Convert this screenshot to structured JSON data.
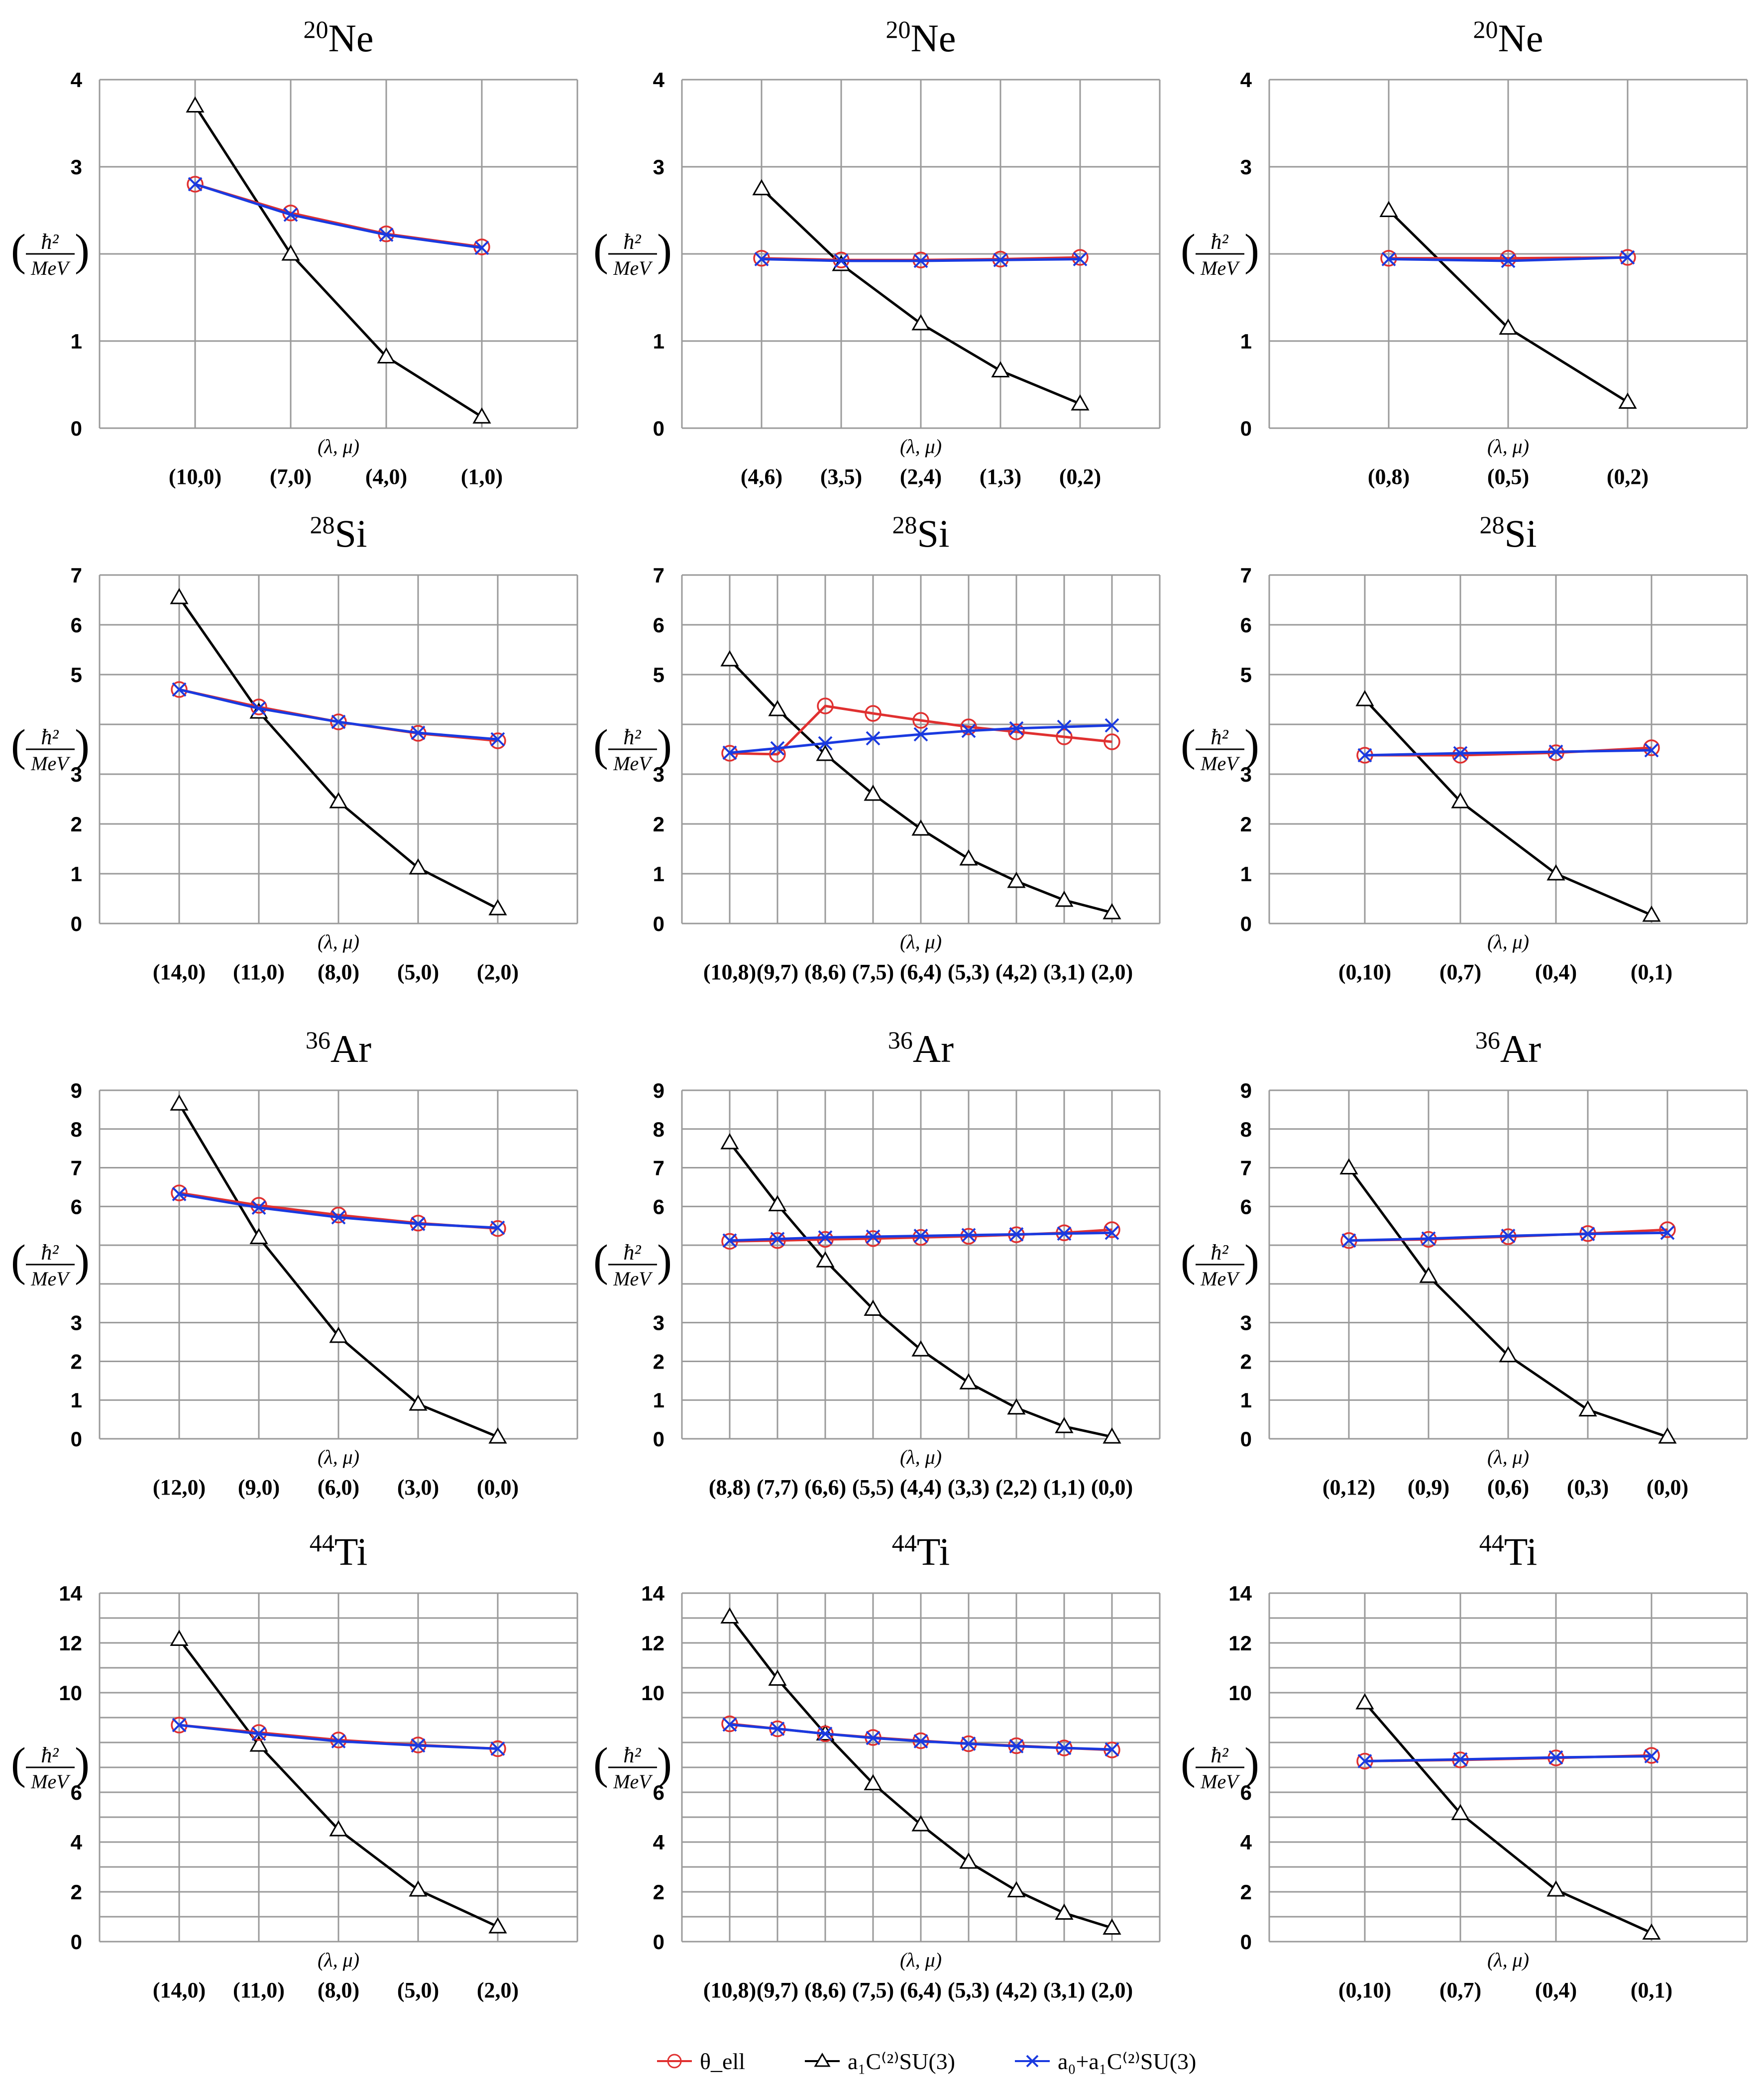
{
  "ylabel_unit": {
    "num": "ħ²",
    "den": "MeV"
  },
  "xlabel": "(λ, μ)",
  "legend": [
    {
      "key": "theta",
      "label": "θ_ell",
      "color": "#e03030",
      "marker": "circle"
    },
    {
      "key": "a1c",
      "label": "a₁C⁽²⁾SU(3)",
      "color": "#000000",
      "marker": "triangle"
    },
    {
      "key": "sum",
      "label": "a₀+a₁C⁽²⁾SU(3)",
      "color": "#1a3ae0",
      "marker": "cross"
    }
  ],
  "chart_data": [
    {
      "type": "line",
      "nucleus": "Ne",
      "mass": "20",
      "title": "20Ne",
      "ylim": [
        0,
        4
      ],
      "yticks": [
        0,
        1,
        2,
        3,
        4
      ],
      "ytick_labels": [
        "0",
        "1",
        "",
        "3",
        "4"
      ],
      "categories": [
        "(10,0)",
        "(7,0)",
        "(4,0)",
        "(1,0)"
      ],
      "series": [
        {
          "key": "a1c",
          "values": [
            3.7,
            2.0,
            0.82,
            0.13
          ]
        },
        {
          "key": "theta",
          "values": [
            2.8,
            2.47,
            2.23,
            2.08
          ]
        },
        {
          "key": "sum",
          "values": [
            2.8,
            2.45,
            2.22,
            2.07
          ]
        }
      ]
    },
    {
      "type": "line",
      "nucleus": "Ne",
      "mass": "20",
      "title": "20Ne",
      "ylim": [
        0,
        4
      ],
      "yticks": [
        0,
        1,
        2,
        3,
        4
      ],
      "ytick_labels": [
        "0",
        "1",
        "",
        "3",
        "4"
      ],
      "categories": [
        "(4,6)",
        "(3,5)",
        "(2,4)",
        "(1,3)",
        "(0,2)"
      ],
      "series": [
        {
          "key": "a1c",
          "values": [
            2.75,
            1.88,
            1.2,
            0.66,
            0.28
          ]
        },
        {
          "key": "theta",
          "values": [
            1.95,
            1.93,
            1.93,
            1.94,
            1.96
          ]
        },
        {
          "key": "sum",
          "values": [
            1.94,
            1.92,
            1.92,
            1.93,
            1.94
          ]
        }
      ]
    },
    {
      "type": "line",
      "nucleus": "Ne",
      "mass": "20",
      "title": "20Ne",
      "ylim": [
        0,
        4
      ],
      "yticks": [
        0,
        1,
        2,
        3,
        4
      ],
      "ytick_labels": [
        "0",
        "1",
        "",
        "3",
        "4"
      ],
      "categories": [
        "(0,8)",
        "(0,5)",
        "(0,2)"
      ],
      "series": [
        {
          "key": "a1c",
          "values": [
            2.5,
            1.15,
            0.3
          ]
        },
        {
          "key": "theta",
          "values": [
            1.95,
            1.95,
            1.96
          ]
        },
        {
          "key": "sum",
          "values": [
            1.94,
            1.92,
            1.96
          ]
        }
      ]
    },
    {
      "type": "line",
      "nucleus": "Si",
      "mass": "28",
      "title": "28Si",
      "ylim": [
        0,
        7
      ],
      "yticks": [
        0,
        1,
        2,
        3,
        4,
        5,
        6,
        7
      ],
      "ytick_labels": [
        "0",
        "1",
        "2",
        "3",
        "",
        "5",
        "6",
        "7"
      ],
      "categories": [
        "(14,0)",
        "(11,0)",
        "(8,0)",
        "(5,0)",
        "(2,0)"
      ],
      "series": [
        {
          "key": "a1c",
          "values": [
            6.55,
            4.25,
            2.45,
            1.12,
            0.3
          ]
        },
        {
          "key": "theta",
          "values": [
            4.7,
            4.35,
            4.05,
            3.82,
            3.67
          ]
        },
        {
          "key": "sum",
          "values": [
            4.7,
            4.32,
            4.05,
            3.83,
            3.7
          ]
        }
      ]
    },
    {
      "type": "line",
      "nucleus": "Si",
      "mass": "28",
      "title": "28Si",
      "ylim": [
        0,
        7
      ],
      "yticks": [
        0,
        1,
        2,
        3,
        4,
        5,
        6,
        7
      ],
      "ytick_labels": [
        "0",
        "1",
        "2",
        "3",
        "",
        "5",
        "6",
        "7"
      ],
      "categories": [
        "(10,8)",
        "(9,7)",
        "(8,6)",
        "(7,5)",
        "(6,4)",
        "(5,3)",
        "(4,2)",
        "(3,1)",
        "(2,0)"
      ],
      "series": [
        {
          "key": "a1c",
          "values": [
            5.3,
            4.3,
            3.4,
            2.6,
            1.9,
            1.3,
            0.85,
            0.47,
            0.22
          ]
        },
        {
          "key": "theta",
          "values": [
            3.42,
            3.4,
            4.37,
            4.22,
            4.08,
            3.95,
            3.85,
            3.75,
            3.65
          ]
        },
        {
          "key": "sum",
          "values": [
            3.43,
            3.52,
            3.62,
            3.72,
            3.8,
            3.87,
            3.92,
            3.95,
            3.98
          ]
        }
      ]
    },
    {
      "type": "line",
      "nucleus": "Si",
      "mass": "28",
      "title": "28Si",
      "ylim": [
        0,
        7
      ],
      "yticks": [
        0,
        1,
        2,
        3,
        4,
        5,
        6,
        7
      ],
      "ytick_labels": [
        "0",
        "1",
        "2",
        "3",
        "",
        "5",
        "6",
        "7"
      ],
      "categories": [
        "(0,10)",
        "(0,7)",
        "(0,4)",
        "(0,1)"
      ],
      "series": [
        {
          "key": "a1c",
          "values": [
            4.5,
            2.45,
            1.0,
            0.17
          ]
        },
        {
          "key": "theta",
          "values": [
            3.38,
            3.38,
            3.43,
            3.53
          ]
        },
        {
          "key": "sum",
          "values": [
            3.38,
            3.42,
            3.45,
            3.48
          ]
        }
      ]
    },
    {
      "type": "line",
      "nucleus": "Ar",
      "mass": "36",
      "title": "36Ar",
      "ylim": [
        0,
        9
      ],
      "yticks": [
        0,
        1,
        2,
        3,
        4,
        5,
        6,
        7,
        8,
        9
      ],
      "ytick_labels": [
        "0",
        "1",
        "2",
        "3",
        "",
        "",
        "6",
        "7",
        "8",
        "9"
      ],
      "categories": [
        "(12,0)",
        "(9,0)",
        "(6,0)",
        "(3,0)",
        "(0,0)"
      ],
      "series": [
        {
          "key": "a1c",
          "values": [
            8.65,
            5.2,
            2.65,
            0.9,
            0.05
          ]
        },
        {
          "key": "theta",
          "values": [
            6.35,
            6.03,
            5.78,
            5.57,
            5.43
          ]
        },
        {
          "key": "sum",
          "values": [
            6.32,
            5.97,
            5.72,
            5.55,
            5.45
          ]
        }
      ]
    },
    {
      "type": "line",
      "nucleus": "Ar",
      "mass": "36",
      "title": "36Ar",
      "ylim": [
        0,
        9
      ],
      "yticks": [
        0,
        1,
        2,
        3,
        4,
        5,
        6,
        7,
        8,
        9
      ],
      "ytick_labels": [
        "0",
        "1",
        "2",
        "3",
        "",
        "",
        "6",
        "7",
        "8",
        "9"
      ],
      "categories": [
        "(8,8)",
        "(7,7)",
        "(6,6)",
        "(5,5)",
        "(4,4)",
        "(3,3)",
        "(2,2)",
        "(1,1)",
        "(0,0)"
      ],
      "series": [
        {
          "key": "a1c",
          "values": [
            7.65,
            6.05,
            4.6,
            3.35,
            2.3,
            1.45,
            0.8,
            0.32,
            0.05
          ]
        },
        {
          "key": "theta",
          "values": [
            5.1,
            5.12,
            5.15,
            5.17,
            5.2,
            5.23,
            5.27,
            5.32,
            5.4
          ]
        },
        {
          "key": "sum",
          "values": [
            5.12,
            5.16,
            5.2,
            5.22,
            5.24,
            5.26,
            5.28,
            5.3,
            5.32
          ]
        }
      ]
    },
    {
      "type": "line",
      "nucleus": "Ar",
      "mass": "36",
      "title": "36Ar",
      "ylim": [
        0,
        9
      ],
      "yticks": [
        0,
        1,
        2,
        3,
        4,
        5,
        6,
        7,
        8,
        9
      ],
      "ytick_labels": [
        "0",
        "1",
        "2",
        "3",
        "",
        "",
        "6",
        "7",
        "8",
        "9"
      ],
      "categories": [
        "(0,12)",
        "(0,9)",
        "(0,6)",
        "(0,3)",
        "(0,0)"
      ],
      "series": [
        {
          "key": "a1c",
          "values": [
            7.0,
            4.2,
            2.15,
            0.75,
            0.05
          ]
        },
        {
          "key": "theta",
          "values": [
            5.12,
            5.15,
            5.22,
            5.3,
            5.4
          ]
        },
        {
          "key": "sum",
          "values": [
            5.12,
            5.17,
            5.24,
            5.29,
            5.32
          ]
        }
      ]
    },
    {
      "type": "line",
      "nucleus": "Ti",
      "mass": "44",
      "title": "44Ti",
      "ylim": [
        0,
        14
      ],
      "yticks": [
        0,
        1,
        2,
        3,
        4,
        5,
        6,
        7,
        8,
        9,
        10,
        11,
        12,
        13,
        14
      ],
      "ytick_labels": [
        "0",
        "",
        "2",
        "",
        "4",
        "",
        "6",
        "",
        "",
        "",
        "10",
        "",
        "12",
        "",
        "14"
      ],
      "categories": [
        "(14,0)",
        "(11,0)",
        "(8,0)",
        "(5,0)",
        "(2,0)"
      ],
      "series": [
        {
          "key": "a1c",
          "values": [
            12.15,
            7.9,
            4.5,
            2.08,
            0.6
          ]
        },
        {
          "key": "theta",
          "values": [
            8.7,
            8.4,
            8.1,
            7.9,
            7.75
          ]
        },
        {
          "key": "sum",
          "values": [
            8.7,
            8.35,
            8.05,
            7.88,
            7.75
          ]
        }
      ]
    },
    {
      "type": "line",
      "nucleus": "Ti",
      "mass": "44",
      "title": "44Ti",
      "ylim": [
        0,
        14
      ],
      "yticks": [
        0,
        1,
        2,
        3,
        4,
        5,
        6,
        7,
        8,
        9,
        10,
        11,
        12,
        13,
        14
      ],
      "ytick_labels": [
        "0",
        "",
        "2",
        "",
        "4",
        "",
        "6",
        "",
        "",
        "",
        "10",
        "",
        "12",
        "",
        "14"
      ],
      "categories": [
        "(10,8)",
        "(9,7)",
        "(8,6)",
        "(7,5)",
        "(6,4)",
        "(5,3)",
        "(4,2)",
        "(3,1)",
        "(2,0)"
      ],
      "series": [
        {
          "key": "a1c",
          "values": [
            13.05,
            10.55,
            8.35,
            6.35,
            4.7,
            3.2,
            2.05,
            1.15,
            0.55
          ]
        },
        {
          "key": "theta",
          "values": [
            8.75,
            8.55,
            8.35,
            8.2,
            8.07,
            7.95,
            7.87,
            7.78,
            7.7
          ]
        },
        {
          "key": "sum",
          "values": [
            8.72,
            8.55,
            8.35,
            8.18,
            8.05,
            7.95,
            7.85,
            7.78,
            7.72
          ]
        }
      ]
    },
    {
      "type": "line",
      "nucleus": "Ti",
      "mass": "44",
      "title": "44Ti",
      "ylim": [
        0,
        14
      ],
      "yticks": [
        0,
        1,
        2,
        3,
        4,
        5,
        6,
        7,
        8,
        9,
        10,
        11,
        12,
        13,
        14
      ],
      "ytick_labels": [
        "0",
        "",
        "2",
        "",
        "4",
        "",
        "6",
        "",
        "",
        "",
        "10",
        "",
        "12",
        "",
        "14"
      ],
      "categories": [
        "(0,10)",
        "(0,7)",
        "(0,4)",
        "(0,1)"
      ],
      "series": [
        {
          "key": "a1c",
          "values": [
            9.6,
            5.15,
            2.08,
            0.35
          ]
        },
        {
          "key": "theta",
          "values": [
            7.25,
            7.3,
            7.38,
            7.48
          ]
        },
        {
          "key": "sum",
          "values": [
            7.25,
            7.32,
            7.4,
            7.45
          ]
        }
      ]
    }
  ]
}
